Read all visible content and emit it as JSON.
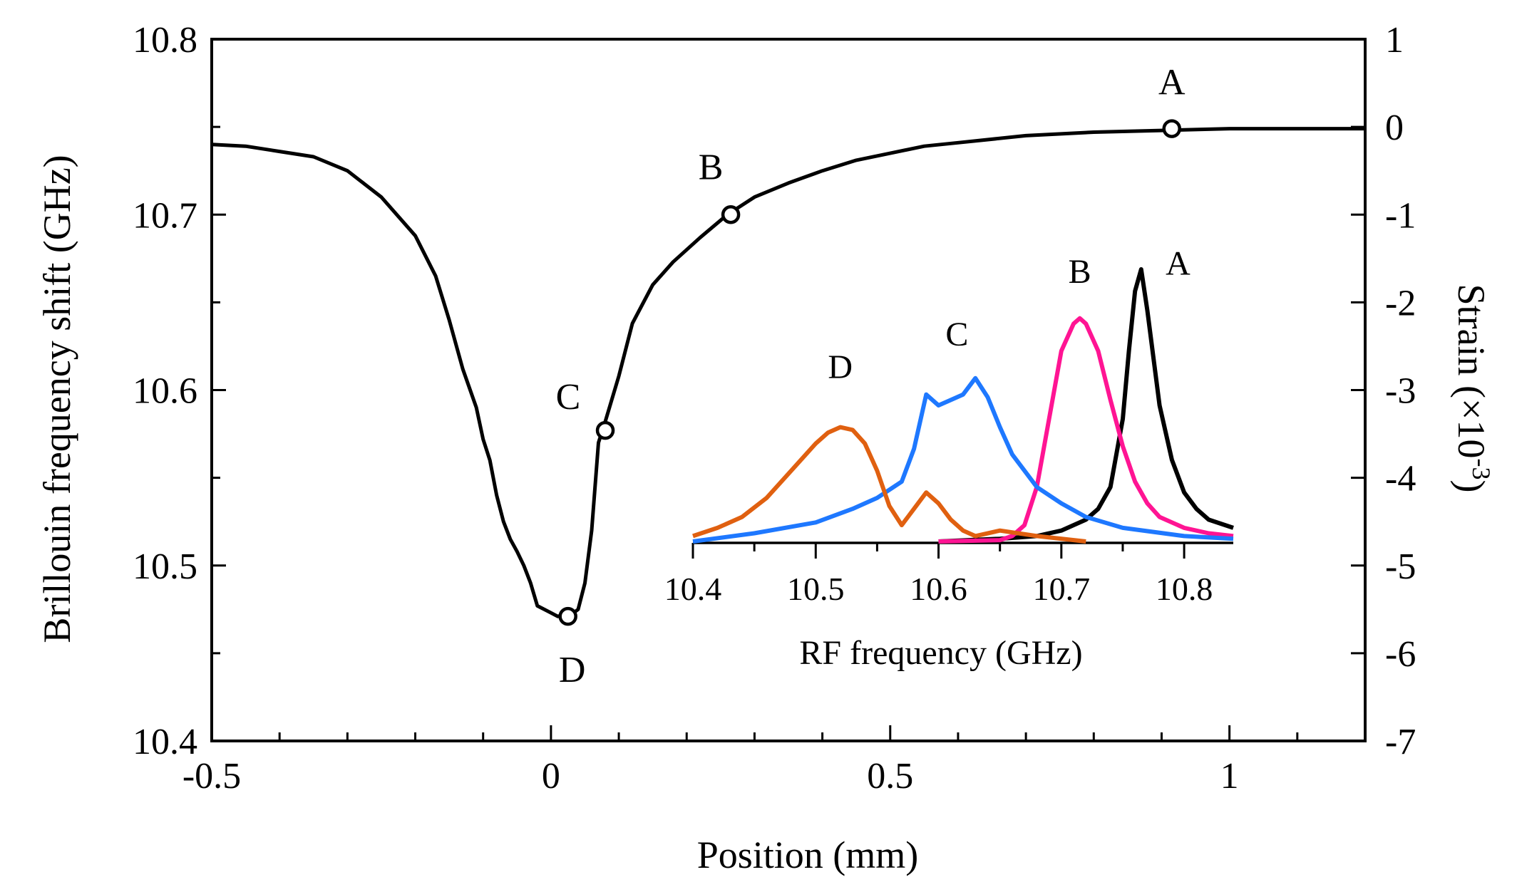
{
  "chart_data": [
    {
      "type": "line",
      "title": "",
      "xlabel": "Position (mm)",
      "ylabel": "Brillouin frequency shift (GHz)",
      "y2label": "Strain (×10",
      "y2label_exp": "-3",
      "y2label_close": ")",
      "xlim": [
        -0.5,
        1.2
      ],
      "ylim": [
        10.4,
        10.8
      ],
      "y2lim": [
        -7,
        1
      ],
      "xticks": [
        -0.5,
        0,
        0.5,
        1
      ],
      "xtick_labels": [
        "-0.5",
        "0",
        "0.5",
        "1"
      ],
      "yticks": [
        10.4,
        10.5,
        10.6,
        10.7,
        10.8
      ],
      "ytick_labels": [
        "10.4",
        "10.5",
        "10.6",
        "10.7",
        "10.8"
      ],
      "y2ticks": [
        1,
        0,
        -1,
        -2,
        -3,
        -4,
        -5,
        -6,
        -7
      ],
      "y2tick_labels": [
        "1",
        "0",
        "-1",
        "-2",
        "-3",
        "-4",
        "-5",
        "-6",
        "-7"
      ],
      "grid": false,
      "series": [
        {
          "color": "#000000",
          "x": [
            -0.5,
            -0.45,
            -0.4,
            -0.35,
            -0.3,
            -0.25,
            -0.2,
            -0.17,
            -0.15,
            -0.13,
            -0.11,
            -0.1,
            -0.09,
            -0.08,
            -0.07,
            -0.06,
            -0.05,
            -0.04,
            -0.03,
            -0.02,
            0.0,
            0.01,
            0.02,
            0.03,
            0.04,
            0.05,
            0.06,
            0.07,
            0.08,
            0.1,
            0.12,
            0.15,
            0.18,
            0.22,
            0.26,
            0.3,
            0.35,
            0.4,
            0.45,
            0.5,
            0.55,
            0.6,
            0.7,
            0.8,
            0.9,
            1.0,
            1.1,
            1.2
          ],
          "y": [
            10.74,
            10.739,
            10.736,
            10.733,
            10.725,
            10.71,
            10.688,
            10.665,
            10.64,
            10.612,
            10.59,
            10.572,
            10.56,
            10.54,
            10.525,
            10.515,
            10.508,
            10.5,
            10.49,
            10.477,
            10.473,
            10.471,
            10.472,
            10.472,
            10.475,
            10.49,
            10.52,
            10.57,
            10.582,
            10.608,
            10.638,
            10.66,
            10.673,
            10.687,
            10.7,
            10.71,
            10.718,
            10.725,
            10.731,
            10.735,
            10.739,
            10.741,
            10.745,
            10.747,
            10.748,
            10.749,
            10.749,
            10.749
          ]
        }
      ],
      "annotations": [
        {
          "label": "A",
          "x": 0.915,
          "y": 10.749
        },
        {
          "label": "B",
          "x": 0.265,
          "y": 10.7
        },
        {
          "label": "C",
          "x": 0.08,
          "y": 10.577
        },
        {
          "label": "D",
          "x": 0.025,
          "y": 10.471
        }
      ]
    },
    {
      "type": "line",
      "title": "",
      "xlabel": "RF frequency (GHz)",
      "ylabel": "",
      "xlim": [
        10.4,
        10.84
      ],
      "ylim": [
        0,
        1
      ],
      "xticks": [
        10.4,
        10.5,
        10.6,
        10.7,
        10.8
      ],
      "xtick_labels": [
        "10.4",
        "10.5",
        "10.6",
        "10.7",
        "10.8"
      ],
      "grid": false,
      "series": [
        {
          "name": "A",
          "color": "#000000",
          "x": [
            10.6,
            10.65,
            10.68,
            10.7,
            10.72,
            10.73,
            10.74,
            10.75,
            10.755,
            10.76,
            10.765,
            10.77,
            10.78,
            10.79,
            10.8,
            10.81,
            10.82,
            10.84
          ],
          "y": [
            0.0,
            0.01,
            0.02,
            0.04,
            0.08,
            0.12,
            0.2,
            0.45,
            0.7,
            0.92,
            1.0,
            0.85,
            0.5,
            0.3,
            0.18,
            0.12,
            0.08,
            0.05
          ]
        },
        {
          "name": "B",
          "color": "#ff1493",
          "x": [
            10.6,
            10.65,
            10.66,
            10.67,
            10.68,
            10.69,
            10.7,
            10.71,
            10.715,
            10.72,
            10.73,
            10.74,
            10.75,
            10.76,
            10.77,
            10.78,
            10.8,
            10.82,
            10.84
          ],
          "y": [
            0.0,
            0.005,
            0.02,
            0.06,
            0.2,
            0.45,
            0.7,
            0.8,
            0.82,
            0.8,
            0.7,
            0.52,
            0.35,
            0.22,
            0.14,
            0.09,
            0.05,
            0.03,
            0.02
          ]
        },
        {
          "name": "C",
          "color": "#1e78ff",
          "x": [
            10.4,
            10.45,
            10.5,
            10.53,
            10.55,
            10.57,
            10.58,
            10.59,
            10.6,
            10.61,
            10.62,
            10.63,
            10.64,
            10.65,
            10.66,
            10.68,
            10.7,
            10.72,
            10.75,
            10.8,
            10.84
          ],
          "y": [
            0.0,
            0.03,
            0.07,
            0.12,
            0.16,
            0.22,
            0.34,
            0.54,
            0.5,
            0.52,
            0.54,
            0.6,
            0.53,
            0.42,
            0.32,
            0.2,
            0.14,
            0.09,
            0.05,
            0.02,
            0.01
          ]
        },
        {
          "name": "D",
          "color": "#e06010",
          "x": [
            10.4,
            10.42,
            10.44,
            10.46,
            10.48,
            10.5,
            10.51,
            10.52,
            10.53,
            10.54,
            10.55,
            10.56,
            10.57,
            10.58,
            10.59,
            10.6,
            10.61,
            10.62,
            10.63,
            10.65,
            10.68,
            10.72
          ],
          "y": [
            0.02,
            0.05,
            0.09,
            0.16,
            0.26,
            0.36,
            0.4,
            0.42,
            0.41,
            0.36,
            0.26,
            0.13,
            0.06,
            0.12,
            0.18,
            0.14,
            0.08,
            0.04,
            0.02,
            0.04,
            0.02,
            0.0
          ]
        }
      ],
      "annotations": [
        {
          "label": "A",
          "x": 10.795,
          "y": 0.98
        },
        {
          "label": "B",
          "x": 10.715,
          "y": 0.95
        },
        {
          "label": "C",
          "x": 10.615,
          "y": 0.72
        },
        {
          "label": "D",
          "x": 10.52,
          "y": 0.6
        }
      ]
    }
  ]
}
